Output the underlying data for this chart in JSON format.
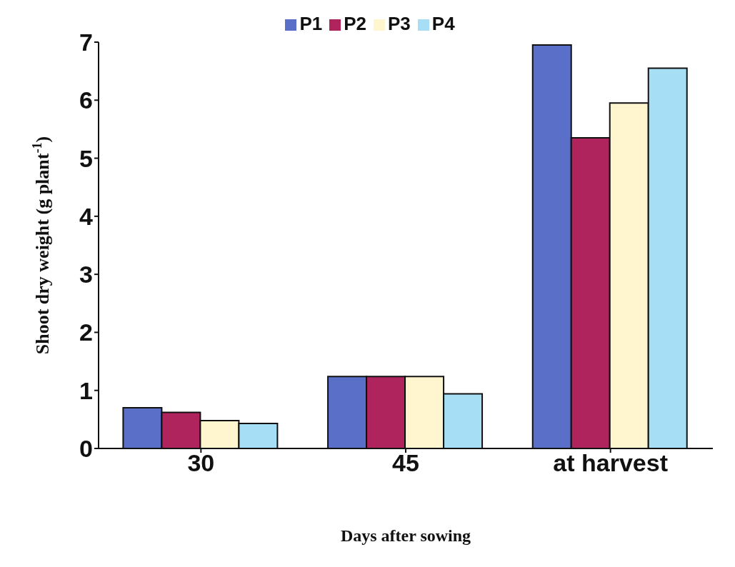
{
  "chart_data": {
    "type": "bar",
    "xlabel": "Days after sowing",
    "ylabel": "Shoot dry weight (g plant$^{-1}$)",
    "categories": [
      "30",
      "45",
      "at harvest"
    ],
    "series": [
      {
        "name": "P1",
        "color": "#5a70c8",
        "values": [
          0.7,
          1.24,
          6.95
        ]
      },
      {
        "name": "P2",
        "color": "#b0245e",
        "values": [
          0.62,
          1.24,
          5.35
        ]
      },
      {
        "name": "P3",
        "color": "#fff6d0",
        "values": [
          0.48,
          1.24,
          5.95
        ]
      },
      {
        "name": "P4",
        "color": "#a6def5",
        "values": [
          0.43,
          0.94,
          6.55
        ]
      }
    ],
    "ylim": [
      0,
      7
    ],
    "yticks": [
      0,
      1,
      2,
      3,
      4,
      5,
      6,
      7
    ],
    "grid": false,
    "legend": "top"
  }
}
